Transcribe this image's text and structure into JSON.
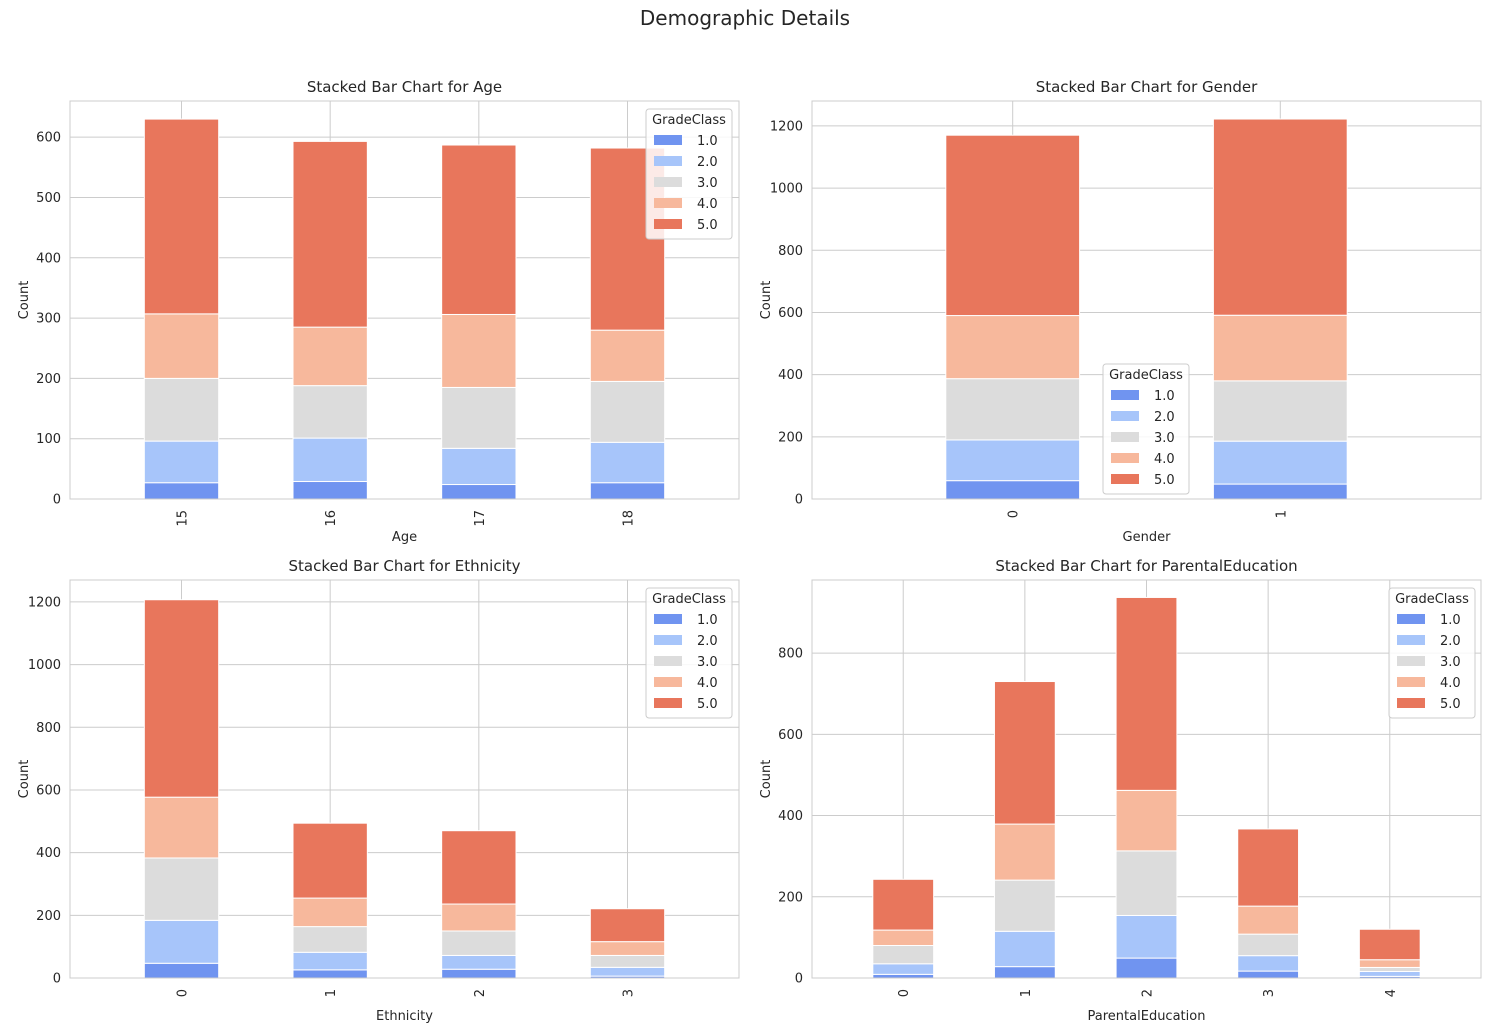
{
  "figure": {
    "suptitle": "Demographic Details"
  },
  "legend_title": "GradeClass",
  "class_colors": [
    "#7094f0",
    "#a7c5fa",
    "#dcdcdc",
    "#f7b89c",
    "#e8765c"
  ],
  "chart_data": [
    {
      "type": "bar",
      "stacked": true,
      "title": "Stacked Bar Chart for Age",
      "xlabel": "Age",
      "ylabel": "Count",
      "categories": [
        "15",
        "16",
        "17",
        "18"
      ],
      "ylim": [
        0,
        660
      ],
      "yticks": [
        0,
        100,
        200,
        300,
        400,
        500,
        600
      ],
      "grid": true,
      "legend": {
        "title": "GradeClass",
        "position": "upper-right"
      },
      "series": [
        {
          "name": "1.0",
          "values": [
            27,
            29,
            24,
            27
          ]
        },
        {
          "name": "2.0",
          "values": [
            69,
            72,
            60,
            67
          ]
        },
        {
          "name": "3.0",
          "values": [
            104,
            87,
            101,
            101
          ]
        },
        {
          "name": "4.0",
          "values": [
            107,
            97,
            121,
            85
          ]
        },
        {
          "name": "5.0",
          "values": [
            323,
            308,
            281,
            302
          ]
        }
      ]
    },
    {
      "type": "bar",
      "stacked": true,
      "title": "Stacked Bar Chart for Gender",
      "xlabel": "Gender",
      "ylabel": "Count",
      "categories": [
        "0",
        "1"
      ],
      "ylim": [
        0,
        1280
      ],
      "yticks": [
        0,
        200,
        400,
        600,
        800,
        1000,
        1200
      ],
      "grid": true,
      "legend": {
        "title": "GradeClass",
        "position": "lower-center"
      },
      "series": [
        {
          "name": "1.0",
          "values": [
            59,
            48
          ]
        },
        {
          "name": "2.0",
          "values": [
            131,
            138
          ]
        },
        {
          "name": "3.0",
          "values": [
            197,
            194
          ]
        },
        {
          "name": "4.0",
          "values": [
            203,
            211
          ]
        },
        {
          "name": "5.0",
          "values": [
            580,
            631
          ]
        }
      ]
    },
    {
      "type": "bar",
      "stacked": true,
      "title": "Stacked Bar Chart for Ethnicity",
      "xlabel": "Ethnicity",
      "ylabel": "Count",
      "categories": [
        "0",
        "1",
        "2",
        "3"
      ],
      "ylim": [
        0,
        1270
      ],
      "yticks": [
        0,
        200,
        400,
        600,
        800,
        1000,
        1200
      ],
      "grid": true,
      "legend": {
        "title": "GradeClass",
        "position": "upper-right"
      },
      "series": [
        {
          "name": "1.0",
          "values": [
            47,
            26,
            28,
            6
          ]
        },
        {
          "name": "2.0",
          "values": [
            137,
            56,
            44,
            28
          ]
        },
        {
          "name": "3.0",
          "values": [
            199,
            82,
            78,
            38
          ]
        },
        {
          "name": "4.0",
          "values": [
            194,
            91,
            86,
            44
          ]
        },
        {
          "name": "5.0",
          "values": [
            630,
            239,
            234,
            105
          ]
        }
      ]
    },
    {
      "type": "bar",
      "stacked": true,
      "title": "Stacked Bar Chart for ParentalEducation",
      "xlabel": "ParentalEducation",
      "ylabel": "Count",
      "categories": [
        "0",
        "1",
        "2",
        "3",
        "4"
      ],
      "ylim": [
        0,
        980
      ],
      "yticks": [
        0,
        200,
        400,
        600,
        800
      ],
      "grid": true,
      "legend": {
        "title": "GradeClass",
        "position": "upper-right"
      },
      "series": [
        {
          "name": "1.0",
          "values": [
            9,
            28,
            49,
            17,
            4
          ]
        },
        {
          "name": "2.0",
          "values": [
            26,
            87,
            105,
            38,
            12
          ]
        },
        {
          "name": "3.0",
          "values": [
            45,
            126,
            159,
            53,
            10
          ]
        },
        {
          "name": "4.0",
          "values": [
            38,
            138,
            149,
            69,
            19
          ]
        },
        {
          "name": "5.0",
          "values": [
            125,
            351,
            475,
            190,
            75
          ]
        }
      ]
    }
  ]
}
